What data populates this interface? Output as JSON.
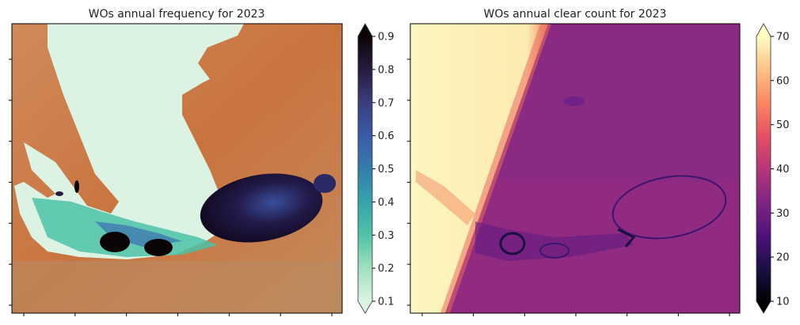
{
  "chart_data": [
    {
      "type": "heatmap",
      "title": "WOs annual frequency for 2023",
      "colormap": "mint-teal-blue-black (reversed mako-like)",
      "colorbar": {
        "min": 0.1,
        "max": 0.9,
        "ticks": [
          "0.1",
          "0.2",
          "0.3",
          "0.4",
          "0.5",
          "0.6",
          "0.7",
          "0.8",
          "0.9"
        ],
        "extend": "both",
        "colors": [
          "#ddf4e4",
          "#9fe0bf",
          "#4fc3a6",
          "#35a4ab",
          "#347dac",
          "#3b5ba6",
          "#3a3d7e",
          "#271c3e",
          "#0b0405"
        ]
      },
      "x_tick_count": 7,
      "y_tick_count": 7,
      "tick_labels_shown": false,
      "background": "true-color satellite image (desert, orange/tan)"
    },
    {
      "type": "heatmap",
      "title": "WOs annual clear count for 2023",
      "colormap": "magma",
      "colorbar": {
        "min": 10,
        "max": 70,
        "ticks": [
          "10",
          "20",
          "30",
          "40",
          "50",
          "60",
          "70"
        ],
        "extend": "both",
        "colors": [
          "#000004",
          "#1c1044",
          "#4f127b",
          "#812581",
          "#b5367a",
          "#e55064",
          "#fb8761",
          "#fec287",
          "#fcfdbf"
        ]
      },
      "x_tick_count": 7,
      "y_tick_count": 7,
      "tick_labels_shown": false
    }
  ]
}
